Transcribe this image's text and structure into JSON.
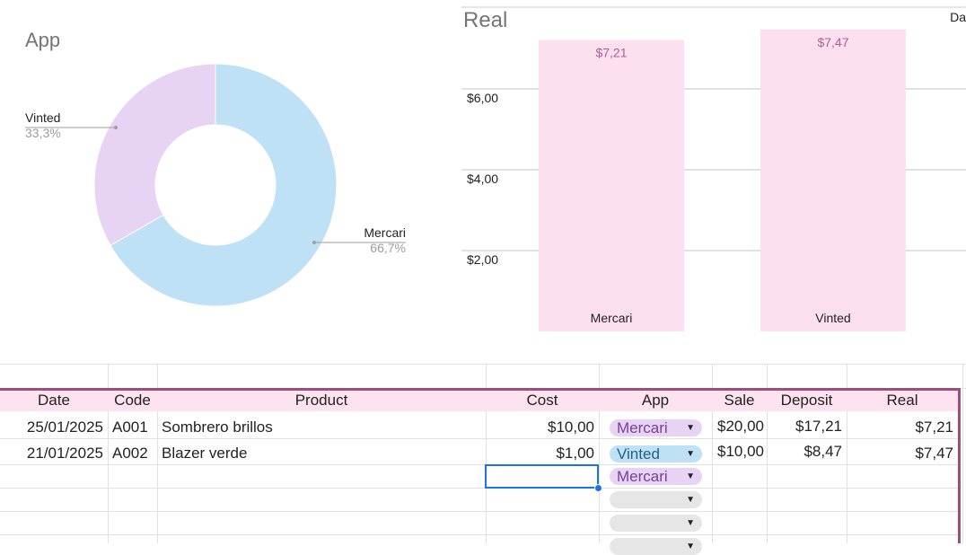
{
  "pie": {
    "title": "App",
    "slices": [
      {
        "label": "Mercari",
        "value": 66.7,
        "pct_text": "66,7%",
        "color": "#bfe1f6"
      },
      {
        "label": "Vinted",
        "value": 33.3,
        "pct_text": "33,3%",
        "color": "#e7d3f4"
      }
    ]
  },
  "bar": {
    "title": "Real",
    "corner_text": "Da",
    "ticks": [
      "$2,00",
      "$4,00",
      "$6,00"
    ],
    "tick_values": [
      2,
      4,
      6
    ],
    "bars": [
      {
        "label": "Mercari",
        "value": 7.21,
        "value_text": "$7,21"
      },
      {
        "label": "Vinted",
        "value": 7.47,
        "value_text": "$7,47"
      }
    ],
    "bar_color": "#fde0ef",
    "value_label_color": "#b15c8d"
  },
  "chart_data": [
    {
      "type": "pie",
      "title": "App",
      "categories": [
        "Mercari",
        "Vinted"
      ],
      "values": [
        66.7,
        33.3
      ]
    },
    {
      "type": "bar",
      "title": "Real",
      "categories": [
        "Mercari",
        "Vinted"
      ],
      "values": [
        7.21,
        7.47
      ],
      "ylim": [
        0,
        8
      ],
      "grid": true
    }
  ],
  "sheet": {
    "headers": {
      "date": "Date",
      "code": "Code",
      "product": "Product",
      "cost": "Cost",
      "app": "App",
      "sale": "Sale",
      "deposit": "Deposit",
      "real": "Real"
    },
    "rows": [
      {
        "date": "25/01/2025",
        "code": "A001",
        "product": "Sombrero brillos",
        "cost": "$10,00",
        "app": "Mercari",
        "sale": "$20,00",
        "deposit": "$17,21",
        "real": "$7,21"
      },
      {
        "date": "21/01/2025",
        "code": "A002",
        "product": "Blazer verde",
        "cost": "$1,00",
        "app": "Vinted",
        "sale": "$10,00",
        "deposit": "$8,47",
        "real": "$7,47"
      }
    ],
    "extra_app": "Mercari"
  }
}
